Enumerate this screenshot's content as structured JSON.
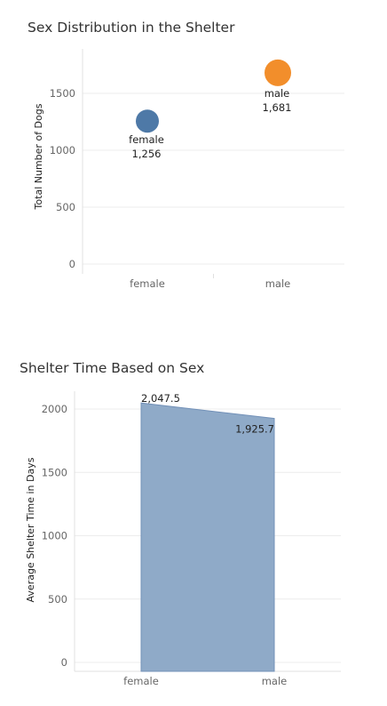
{
  "chart_data": [
    {
      "type": "scatter",
      "title": "Sex Distribution in the Shelter",
      "xlabel": "",
      "ylabel": "Total Number of Dogs",
      "categories": [
        "female",
        "male"
      ],
      "values": [
        1256,
        1681
      ],
      "value_labels": [
        "1,256",
        "1,681"
      ],
      "point_colors": [
        "#4e79a7",
        "#f28e2b"
      ],
      "yticks": [
        0,
        500,
        1000,
        1500
      ],
      "ylim": [
        0,
        1750
      ],
      "grid": true,
      "legend": "none"
    },
    {
      "type": "area",
      "title": "Shelter Time Based on Sex",
      "xlabel": "",
      "ylabel": "Average Shelter Time in Days",
      "categories": [
        "female",
        "male"
      ],
      "values": [
        2047.5,
        1925.7
      ],
      "value_labels": [
        "2,047.5",
        "1,925.7"
      ],
      "fill_color": "#8faac8",
      "stroke_color": "#7391b8",
      "yticks": [
        0,
        500,
        1000,
        1500,
        2000
      ],
      "ylim": [
        -50,
        2100
      ],
      "grid": true,
      "legend": "none"
    }
  ]
}
